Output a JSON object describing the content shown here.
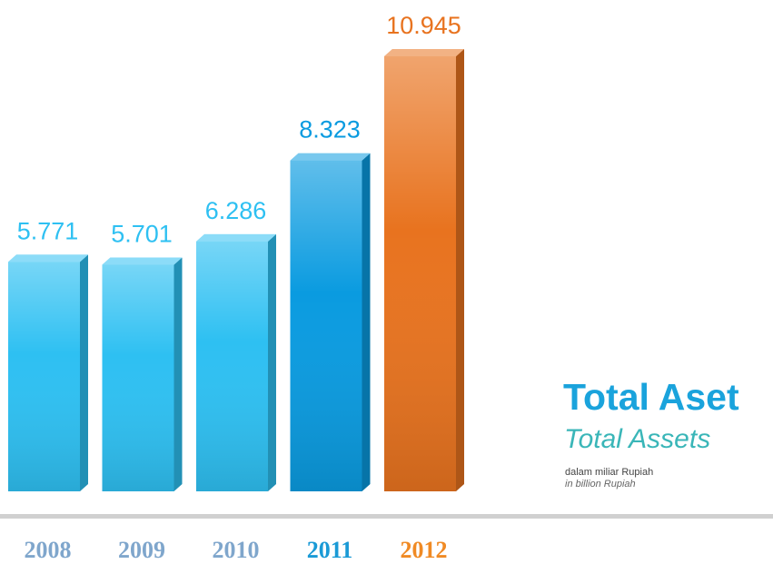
{
  "chart_data": {
    "type": "bar",
    "title": "Total Aset",
    "subtitle": "Total Assets",
    "unit_note": "dalam miliar Rupiah",
    "unit_note_en": "in billion Rupiah",
    "categories": [
      "2008",
      "2009",
      "2010",
      "2011",
      "2012"
    ],
    "values": [
      5771,
      5701,
      6286,
      8323,
      10945
    ],
    "value_labels": [
      "5.771",
      "5.701",
      "6.286",
      "8.323",
      "10.945"
    ],
    "colors": [
      "#2ec0f2",
      "#2ec0f2",
      "#2ec0f2",
      "#0a9be0",
      "#e8731f"
    ],
    "category_colors": [
      "#7fa6cc",
      "#7fa6cc",
      "#7fa6cc",
      "#1a9ad6",
      "#f08a24"
    ]
  }
}
